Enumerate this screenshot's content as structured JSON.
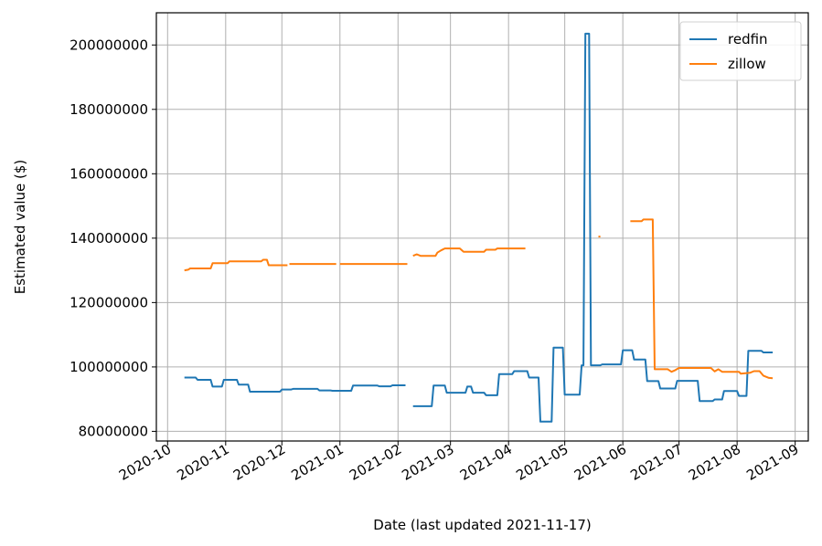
{
  "chart_data": {
    "type": "line",
    "xlabel": "Date (last updated 2021-11-17)",
    "ylabel": "Estimated value ($)",
    "x_axis_type": "date",
    "xlim": [
      "2020-09-25",
      "2021-09-08"
    ],
    "ylim": [
      77000000,
      210000000
    ],
    "grid": true,
    "legend_position": "top-right",
    "x_ticks": [
      "2020-10",
      "2020-11",
      "2020-12",
      "2021-01",
      "2021-02",
      "2021-03",
      "2021-04",
      "2021-05",
      "2021-06",
      "2021-07",
      "2021-08",
      "2021-09"
    ],
    "y_ticks": [
      80000000,
      100000000,
      120000000,
      140000000,
      160000000,
      180000000,
      200000000
    ],
    "y_tick_labels": [
      "80000000",
      "100000000",
      "120000000",
      "140000000",
      "160000000",
      "180000000",
      "200000000"
    ],
    "series": [
      {
        "name": "redfin",
        "color": "#1f77b4",
        "segments": [
          [
            [
              "2020-10-10",
              96700000
            ],
            [
              "2020-10-16",
              96700000
            ],
            [
              "2020-10-17",
              96000000
            ],
            [
              "2020-10-24",
              96000000
            ],
            [
              "2020-10-25",
              93900000
            ],
            [
              "2020-10-30",
              93900000
            ],
            [
              "2020-10-31",
              96000000
            ],
            [
              "2020-11-07",
              96000000
            ],
            [
              "2020-11-08",
              94500000
            ],
            [
              "2020-11-13",
              94500000
            ],
            [
              "2020-11-14",
              92300000
            ],
            [
              "2020-11-26",
              92300000
            ],
            [
              "2020-11-27",
              92300000
            ],
            [
              "2020-11-30",
              92300000
            ],
            [
              "2020-12-01",
              93000000
            ],
            [
              "2020-12-06",
              93000000
            ],
            [
              "2020-12-07",
              93200000
            ],
            [
              "2020-12-20",
              93200000
            ],
            [
              "2020-12-21",
              92700000
            ],
            [
              "2020-12-27",
              92700000
            ],
            [
              "2020-12-28",
              92600000
            ],
            [
              "2021-01-07",
              92600000
            ],
            [
              "2021-01-08",
              94200000
            ],
            [
              "2021-01-21",
              94200000
            ],
            [
              "2021-01-22",
              94000000
            ],
            [
              "2021-01-28",
              94000000
            ],
            [
              "2021-01-29",
              94300000
            ],
            [
              "2021-02-05",
              94300000
            ]
          ],
          [
            [
              "2021-02-09",
              87800000
            ],
            [
              "2021-02-19",
              87800000
            ],
            [
              "2021-02-20",
              94200000
            ],
            [
              "2021-02-26",
              94200000
            ],
            [
              "2021-02-27",
              92000000
            ],
            [
              "2021-03-09",
              92000000
            ],
            [
              "2021-03-10",
              93900000
            ],
            [
              "2021-03-12",
              93900000
            ],
            [
              "2021-03-13",
              92000000
            ],
            [
              "2021-03-19",
              92000000
            ],
            [
              "2021-03-20",
              91200000
            ],
            [
              "2021-03-26",
              91200000
            ],
            [
              "2021-03-27",
              97800000
            ],
            [
              "2021-04-03",
              97800000
            ],
            [
              "2021-04-04",
              98700000
            ],
            [
              "2021-04-11",
              98700000
            ],
            [
              "2021-04-12",
              96700000
            ],
            [
              "2021-04-17",
              96700000
            ],
            [
              "2021-04-18",
              83000000
            ],
            [
              "2021-04-24",
              83000000
            ],
            [
              "2021-04-25",
              106000000
            ],
            [
              "2021-04-30",
              106000000
            ],
            [
              "2021-05-01",
              91400000
            ],
            [
              "2021-05-09",
              91400000
            ],
            [
              "2021-05-10",
              100500000
            ],
            [
              "2021-05-11",
              100500000
            ],
            [
              "2021-05-12",
              203500000
            ],
            [
              "2021-05-14",
              203500000
            ],
            [
              "2021-05-15",
              100500000
            ],
            [
              "2021-05-20",
              100500000
            ],
            [
              "2021-05-21",
              100800000
            ],
            [
              "2021-05-31",
              100800000
            ],
            [
              "2021-06-01",
              105200000
            ],
            [
              "2021-06-06",
              105200000
            ],
            [
              "2021-06-07",
              102300000
            ],
            [
              "2021-06-13",
              102300000
            ],
            [
              "2021-06-14",
              95600000
            ],
            [
              "2021-06-20",
              95600000
            ],
            [
              "2021-06-21",
              93300000
            ],
            [
              "2021-06-29",
              93300000
            ],
            [
              "2021-06-30",
              95700000
            ],
            [
              "2021-07-11",
              95700000
            ],
            [
              "2021-07-12",
              89400000
            ],
            [
              "2021-07-19",
              89400000
            ],
            [
              "2021-07-20",
              89900000
            ],
            [
              "2021-07-24",
              89900000
            ],
            [
              "2021-07-25",
              92500000
            ],
            [
              "2021-08-01",
              92500000
            ],
            [
              "2021-08-02",
              91000000
            ],
            [
              "2021-08-06",
              91000000
            ],
            [
              "2021-08-07",
              105000000
            ],
            [
              "2021-08-14",
              105000000
            ],
            [
              "2021-08-15",
              104500000
            ],
            [
              "2021-08-20",
              104500000
            ]
          ]
        ]
      },
      {
        "name": "zillow",
        "color": "#ff7f0e",
        "segments": [
          [
            [
              "2020-10-10",
              130000000
            ],
            [
              "2020-10-12",
              130200000
            ],
            [
              "2020-10-13",
              130600000
            ],
            [
              "2020-10-24",
              130600000
            ],
            [
              "2020-10-25",
              132200000
            ],
            [
              "2020-11-02",
              132200000
            ],
            [
              "2020-11-03",
              132800000
            ],
            [
              "2020-11-20",
              132800000
            ],
            [
              "2020-11-21",
              133300000
            ],
            [
              "2020-11-23",
              133300000
            ],
            [
              "2020-11-24",
              131600000
            ],
            [
              "2020-12-04",
              131600000
            ]
          ],
          [
            [
              "2020-12-05",
              132000000
            ],
            [
              "2020-12-30",
              132000000
            ]
          ],
          [
            [
              "2021-01-01",
              132000000
            ],
            [
              "2021-02-06",
              132000000
            ]
          ],
          [
            [
              "2021-02-09",
              134500000
            ],
            [
              "2021-02-11",
              135000000
            ],
            [
              "2021-02-13",
              134500000
            ],
            [
              "2021-02-21",
              134500000
            ],
            [
              "2021-02-22",
              135500000
            ],
            [
              "2021-02-24",
              136200000
            ],
            [
              "2021-02-26",
              136800000
            ],
            [
              "2021-03-06",
              136800000
            ],
            [
              "2021-03-08",
              135800000
            ],
            [
              "2021-03-19",
              135800000
            ],
            [
              "2021-03-20",
              136400000
            ],
            [
              "2021-03-25",
              136400000
            ],
            [
              "2021-03-26",
              136800000
            ],
            [
              "2021-04-10",
              136800000
            ]
          ],
          [
            [
              "2021-05-19",
              140500000
            ],
            [
              "2021-05-20",
              140500000
            ]
          ],
          [
            [
              "2021-06-05",
              145300000
            ],
            [
              "2021-06-11",
              145300000
            ],
            [
              "2021-06-12",
              145800000
            ],
            [
              "2021-06-17",
              145800000
            ],
            [
              "2021-06-18",
              99300000
            ],
            [
              "2021-06-25",
              99300000
            ],
            [
              "2021-06-27",
              98500000
            ],
            [
              "2021-06-29",
              99000000
            ],
            [
              "2021-07-01",
              99700000
            ],
            [
              "2021-07-18",
              99700000
            ],
            [
              "2021-07-20",
              98600000
            ],
            [
              "2021-07-22",
              99300000
            ],
            [
              "2021-07-24",
              98500000
            ],
            [
              "2021-08-02",
              98500000
            ],
            [
              "2021-08-03",
              97900000
            ],
            [
              "2021-08-08",
              98200000
            ],
            [
              "2021-08-10",
              98700000
            ],
            [
              "2021-08-13",
              98700000
            ],
            [
              "2021-08-15",
              97300000
            ],
            [
              "2021-08-18",
              96600000
            ],
            [
              "2021-08-20",
              96500000
            ]
          ]
        ]
      }
    ]
  }
}
